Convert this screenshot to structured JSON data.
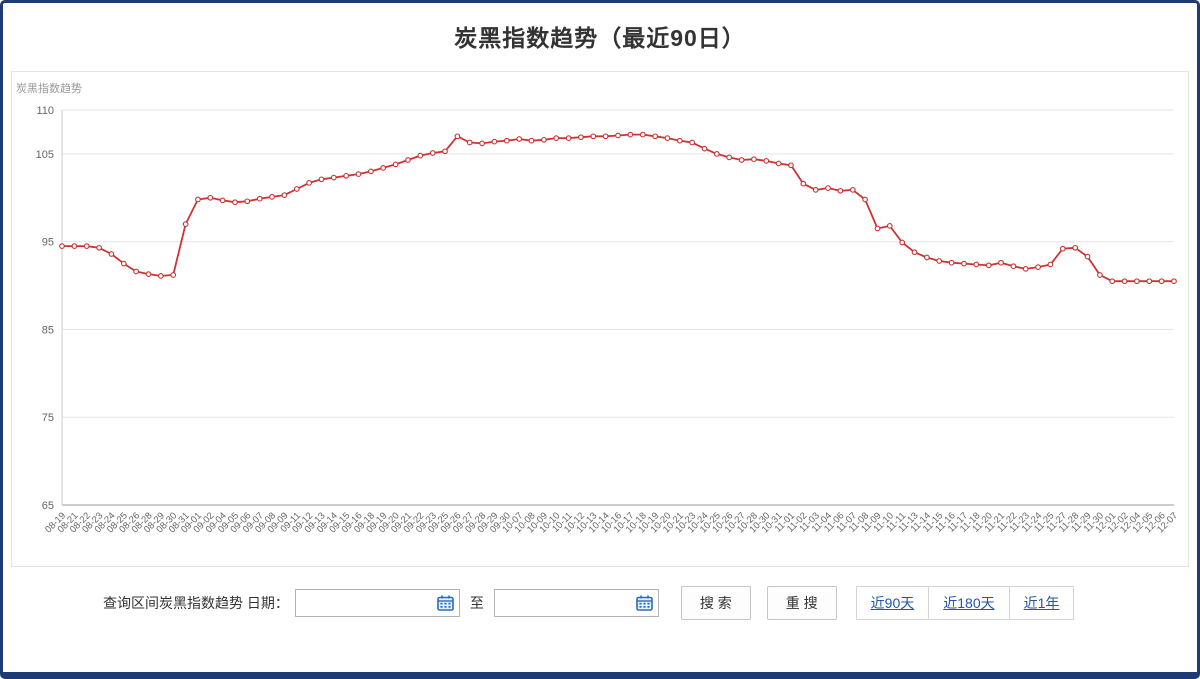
{
  "page": {
    "title": "炭黑指数趋势（最近90日）"
  },
  "colors": {
    "line": "#cc3333",
    "accent_blue": "#2b6cb8",
    "link_blue": "#1d57a6",
    "frame_navy": "#1e3a74"
  },
  "chart_data": {
    "type": "line",
    "title": "炭黑指数趋势（最近90日）",
    "ylabel": "炭黑指数趋势",
    "xlabel": "",
    "ylim": [
      65,
      110
    ],
    "y_ticks": [
      65,
      75,
      85,
      95,
      105,
      110
    ],
    "grid": true,
    "legend_position": "none",
    "line_color": "#cc3333",
    "categories": [
      "08-19",
      "08-21",
      "08-22",
      "08-23",
      "08-24",
      "08-25",
      "08-26",
      "08-28",
      "08-29",
      "08-30",
      "08-31",
      "09-01",
      "09-02",
      "09-04",
      "09-05",
      "09-06",
      "09-07",
      "09-08",
      "09-09",
      "09-11",
      "09-12",
      "09-13",
      "09-14",
      "09-15",
      "09-16",
      "09-18",
      "09-19",
      "09-20",
      "09-21",
      "09-22",
      "09-23",
      "09-25",
      "09-26",
      "09-27",
      "09-28",
      "09-29",
      "09-30",
      "10-07",
      "10-08",
      "10-09",
      "10-10",
      "10-11",
      "10-12",
      "10-13",
      "10-14",
      "10-16",
      "10-17",
      "10-18",
      "10-19",
      "10-20",
      "10-21",
      "10-23",
      "10-24",
      "10-25",
      "10-26",
      "10-27",
      "10-28",
      "10-30",
      "10-31",
      "11-01",
      "11-02",
      "11-03",
      "11-04",
      "11-06",
      "11-07",
      "11-08",
      "11-09",
      "11-10",
      "11-11",
      "11-13",
      "11-14",
      "11-15",
      "11-16",
      "11-17",
      "11-18",
      "11-20",
      "11-21",
      "11-22",
      "11-23",
      "11-24",
      "11-25",
      "11-27",
      "11-28",
      "11-29",
      "11-30",
      "12-01",
      "12-02",
      "12-04",
      "12-05",
      "12-06",
      "12-07"
    ],
    "values": [
      94.5,
      94.5,
      94.5,
      94.3,
      93.6,
      92.5,
      91.6,
      91.3,
      91.1,
      91.2,
      97.0,
      99.8,
      100.0,
      99.7,
      99.5,
      99.6,
      99.9,
      100.1,
      100.3,
      101.0,
      101.7,
      102.1,
      102.3,
      102.5,
      102.7,
      103.0,
      103.4,
      103.8,
      104.3,
      104.8,
      105.1,
      105.3,
      107.0,
      106.3,
      106.2,
      106.4,
      106.5,
      106.7,
      106.5,
      106.6,
      106.8,
      106.8,
      106.9,
      107.0,
      107.0,
      107.1,
      107.2,
      107.2,
      107.0,
      106.8,
      106.5,
      106.3,
      105.6,
      105.0,
      104.6,
      104.3,
      104.4,
      104.2,
      103.9,
      103.7,
      101.6,
      100.9,
      101.1,
      100.8,
      100.9,
      99.8,
      96.5,
      96.8,
      94.9,
      93.8,
      93.2,
      92.8,
      92.6,
      92.5,
      92.4,
      92.3,
      92.6,
      92.2,
      91.9,
      92.1,
      92.4,
      94.2,
      94.3,
      93.3,
      91.2,
      90.5,
      90.5,
      90.5,
      90.5,
      90.5,
      90.5
    ]
  },
  "form": {
    "label": "查询区间炭黑指数趋势 日期：",
    "to_label": "至",
    "date_from": "",
    "date_to": "",
    "search_button": "搜 索",
    "research_button": "重 搜",
    "quick_links": [
      {
        "label": "近90天"
      },
      {
        "label": "近180天"
      },
      {
        "label": "近1年"
      }
    ]
  }
}
